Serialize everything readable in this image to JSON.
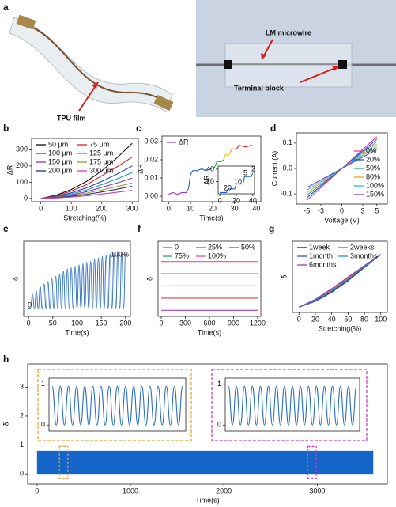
{
  "photo": {
    "panel": "a",
    "labels": [
      "TPU film",
      "LM microwire",
      "Terminal block"
    ]
  },
  "chart_data": [
    {
      "type": "line",
      "panel": "b",
      "x_label": "Stretching(%)",
      "y_label": "ΔR",
      "xlim": [
        -30,
        320
      ],
      "xticks": [
        0,
        100,
        200,
        300
      ],
      "ylim": [
        -20,
        370
      ],
      "yticks": [
        0,
        100,
        200,
        300
      ],
      "legend": "upper left",
      "legend_columns": 2,
      "x": [
        0,
        50,
        100,
        150,
        200,
        250,
        300
      ],
      "series": [
        {
          "name": "50 μm",
          "color": "#111111",
          "values": [
            0,
            20,
            55,
            105,
            170,
            250,
            340
          ]
        },
        {
          "name": "75 μm",
          "color": "#e02020",
          "values": [
            0,
            15,
            45,
            85,
            140,
            195,
            255
          ]
        },
        {
          "name": "100 μm",
          "color": "#2040e0",
          "values": [
            0,
            12,
            35,
            65,
            105,
            150,
            200
          ]
        },
        {
          "name": "125 μm",
          "color": "#10a0a0",
          "values": [
            0,
            10,
            28,
            52,
            85,
            120,
            160
          ]
        },
        {
          "name": "150 μm",
          "color": "#9030c0",
          "values": [
            0,
            8,
            22,
            42,
            68,
            95,
            125
          ]
        },
        {
          "name": "175 μm",
          "color": "#90a020",
          "values": [
            0,
            6,
            17,
            33,
            52,
            73,
            95
          ]
        },
        {
          "name": "200 μm",
          "color": "#203090",
          "values": [
            0,
            5,
            13,
            25,
            40,
            57,
            75
          ]
        },
        {
          "name": "300 μm",
          "color": "#d040a0",
          "values": [
            0,
            3,
            9,
            17,
            27,
            38,
            50
          ]
        }
      ]
    },
    {
      "type": "line",
      "panel": "c",
      "x_label": "Time(s)",
      "y_label": "ΔR",
      "xlim": [
        -3,
        42
      ],
      "xticks": [
        0,
        10,
        20,
        30,
        40
      ],
      "ylim": [
        -0.003,
        0.033
      ],
      "yticks": [
        {
          "value": 0,
          "label": "0.00"
        },
        {
          "value": 0.01,
          "label": "0.01"
        },
        {
          "value": 0.02,
          "label": "0.02"
        },
        {
          "value": 0.03,
          "label": "0.03"
        }
      ],
      "legend": "upper left",
      "legend_columns": 1,
      "series": [
        {
          "name": "ΔR",
          "color": "#a030d0",
          "x": [
            0,
            2,
            4,
            6,
            8,
            9
          ],
          "values": [
            0.001,
            0.002,
            0.001,
            0.002,
            0.002,
            0.004
          ]
        },
        {
          "color": "#2060d0",
          "x": [
            9,
            10,
            11,
            13,
            15,
            17,
            19,
            21
          ],
          "values": [
            0.004,
            0.012,
            0.014,
            0.014,
            0.015,
            0.014,
            0.015,
            0.016
          ]
        },
        {
          "color": "#20b040",
          "x": [
            21,
            22,
            24,
            25
          ],
          "values": [
            0.016,
            0.019,
            0.019,
            0.02
          ]
        },
        {
          "color": "#e0d020",
          "x": [
            25,
            26,
            27,
            28
          ],
          "values": [
            0.02,
            0.023,
            0.022,
            0.024
          ]
        },
        {
          "color": "#f09020",
          "x": [
            28,
            29,
            31
          ],
          "values": [
            0.024,
            0.026,
            0.026
          ]
        },
        {
          "color": "#e02020",
          "x": [
            31,
            32,
            35,
            38
          ],
          "values": [
            0.026,
            0.028,
            0.027,
            0.028
          ]
        }
      ]
    },
    {
      "type": "line",
      "y_label": "ΔR",
      "xlim": [
        -2,
        42
      ],
      "xticks": [
        0,
        20,
        40
      ],
      "ylim": [
        0,
        45
      ],
      "yticks": [
        20,
        40
      ],
      "annotations": [
        "20",
        "10",
        "5",
        "2"
      ],
      "series": [
        {
          "color": "#2060d0",
          "x": [
            0,
            8,
            10,
            18,
            20,
            28,
            30,
            38,
            40
          ],
          "values": [
            2,
            2,
            8,
            8,
            16,
            16,
            28,
            28,
            34
          ]
        }
      ]
    },
    {
      "type": "line",
      "panel": "d",
      "x_label": "Voltage (V)",
      "y_label": "Current (A)",
      "xlim": [
        -6.5,
        6.5
      ],
      "xticks": [
        -5,
        -3,
        0,
        3,
        5
      ],
      "ylim": [
        -0.14,
        0.14
      ],
      "yticks": [
        -0.1,
        {
          "value": 0,
          "label": "0.0"
        },
        0.1
      ],
      "legend": "lower right",
      "legend_columns": 1,
      "x": [
        -5,
        5
      ],
      "series": [
        {
          "name": "0%",
          "color": "#e040a0",
          "values": [
            -0.125,
            0.125
          ]
        },
        {
          "name": "20%",
          "color": "#2050e0",
          "values": [
            -0.115,
            0.115
          ]
        },
        {
          "name": "50%",
          "color": "#20a0a0",
          "values": [
            -0.105,
            0.105
          ]
        },
        {
          "name": "80%",
          "color": "#f0a020",
          "values": [
            -0.095,
            0.095
          ]
        },
        {
          "name": "100%",
          "color": "#20c0e0",
          "values": [
            -0.085,
            0.085
          ]
        },
        {
          "name": "150%",
          "color": "#8040c0",
          "values": [
            -0.075,
            0.075
          ]
        }
      ]
    },
    {
      "type": "line",
      "panel": "e",
      "x_label": "Time(s)",
      "y_label": "δ",
      "xlim": [
        -10,
        210
      ],
      "xticks": [
        0,
        50,
        100,
        150,
        200
      ],
      "ylim": [
        -0.15,
        1.35
      ],
      "annotations": [
        "0",
        "100%"
      ],
      "x": [
        0,
        4,
        8,
        12,
        16,
        20,
        24,
        28,
        32,
        36,
        40,
        44,
        48,
        52,
        56,
        60,
        64,
        68,
        72,
        76,
        80,
        84,
        88,
        92,
        96,
        100,
        104,
        108,
        112,
        116,
        120,
        124,
        128,
        132,
        136,
        140,
        144,
        148,
        152,
        156,
        160,
        164,
        168,
        172,
        176,
        180,
        184,
        188,
        192,
        196,
        200
      ],
      "series": [
        {
          "color": "#2a6fc0",
          "values": [
            0,
            0,
            0.3,
            0,
            0.35,
            0,
            0.45,
            0,
            0.5,
            0,
            0.55,
            0,
            0.6,
            0,
            0.65,
            0,
            0.7,
            0,
            0.75,
            0,
            0.8,
            0,
            0.82,
            0,
            0.85,
            0,
            0.88,
            0,
            0.9,
            0,
            0.93,
            0,
            0.95,
            0,
            1.0,
            0,
            1.02,
            0,
            1.05,
            0,
            1.08,
            0,
            1.1,
            0,
            1.12,
            0,
            1.15,
            0,
            1.15,
            0,
            1.12
          ]
        }
      ]
    },
    {
      "type": "line",
      "panel": "f",
      "x_label": "Time(s)",
      "y_label": "δ",
      "xlim": [
        -40,
        1240
      ],
      "xticks": [
        0,
        300,
        600,
        900,
        1200
      ],
      "ylim": [
        -0.15,
        1.7
      ],
      "legend": "upper center",
      "legend_columns": 3,
      "x": [
        0,
        1200
      ],
      "series": [
        {
          "name": "0",
          "color": "#a040d0",
          "values": [
            0,
            0
          ]
        },
        {
          "name": "25%",
          "color": "#e04040",
          "values": [
            0.3,
            0.3
          ]
        },
        {
          "name": "50%",
          "color": "#2a6fd0",
          "values": [
            0.6,
            0.6
          ]
        },
        {
          "name": "75%",
          "color": "#20b060",
          "values": [
            0.9,
            0.9
          ]
        },
        {
          "name": "100%",
          "color": "#e050c0",
          "values": [
            1.2,
            1.2
          ]
        }
      ]
    },
    {
      "type": "line",
      "panel": "g",
      "x_label": "Stretching(%)",
      "y_label": "δ",
      "xlim": [
        -8,
        108
      ],
      "xticks": [
        0,
        20,
        40,
        60,
        80,
        100
      ],
      "ylim": [
        -0.1,
        1.25
      ],
      "legend": "upper left",
      "legend_columns": 2,
      "x": [
        0,
        20,
        40,
        60,
        80,
        100
      ],
      "series": [
        {
          "name": "1week",
          "color": "#222222",
          "values": [
            0,
            0.12,
            0.3,
            0.52,
            0.76,
            1.0
          ]
        },
        {
          "name": "2weeks",
          "color": "#e04040",
          "values": [
            0,
            0.14,
            0.33,
            0.55,
            0.78,
            1.0
          ]
        },
        {
          "name": "1month",
          "color": "#3050d0",
          "values": [
            0,
            0.11,
            0.28,
            0.5,
            0.75,
            1.0
          ]
        },
        {
          "name": "3months",
          "color": "#20a0a0",
          "values": [
            0,
            0.13,
            0.31,
            0.53,
            0.77,
            1.0
          ]
        },
        {
          "name": "6months",
          "color": "#9040c0",
          "values": [
            0,
            0.15,
            0.35,
            0.57,
            0.79,
            1.0
          ]
        }
      ]
    },
    {
      "type": "band",
      "panel": "h",
      "x_label": "Time(s)",
      "y_label": "δ",
      "xlim": [
        -100,
        3750
      ],
      "xticks": [
        0,
        1000,
        2000,
        3000
      ],
      "ylim": [
        -0.35,
        3.8
      ],
      "yticks": [
        0,
        1,
        2,
        3
      ],
      "band": {
        "x": [
          0,
          3600
        ],
        "y": [
          0,
          0.8
        ],
        "color": "#1565c8"
      },
      "highlights": [
        {
          "x": [
            240,
            330
          ],
          "y": [
            -0.15,
            0.95
          ],
          "color": "#f0a030"
        },
        {
          "x": [
            2900,
            2990
          ],
          "y": [
            -0.15,
            0.95
          ],
          "color": "#d040d0"
        }
      ]
    },
    {
      "type": "line",
      "ylim": [
        -0.15,
        1.15
      ],
      "yticks": [
        0,
        1
      ],
      "series": [
        {
          "color": "#2a6fc0",
          "values": [
            0.95,
            0,
            0.95,
            0,
            0.95,
            0,
            0.95,
            0,
            0.95,
            0,
            0.95,
            0,
            0.95,
            0,
            0.95,
            0,
            0.95,
            0,
            0.95,
            0,
            0.95,
            0,
            0.95,
            0,
            0.95,
            0,
            0.95,
            0,
            0.95,
            0,
            0.95,
            0,
            0.95
          ]
        }
      ]
    },
    {
      "type": "line",
      "ylim": [
        -0.15,
        1.15
      ],
      "yticks": [
        0,
        1
      ],
      "series": [
        {
          "color": "#2a6fc0",
          "values": [
            0.95,
            0,
            0.95,
            0,
            0.95,
            0,
            0.95,
            0,
            0.95,
            0,
            0.95,
            0,
            0.95,
            0,
            0.95,
            0,
            0.95,
            0,
            0.95,
            0,
            0.95,
            0,
            0.95,
            0,
            0.95,
            0,
            0.95,
            0,
            0.95,
            0,
            0.95,
            0,
            0.95
          ]
        }
      ]
    }
  ]
}
